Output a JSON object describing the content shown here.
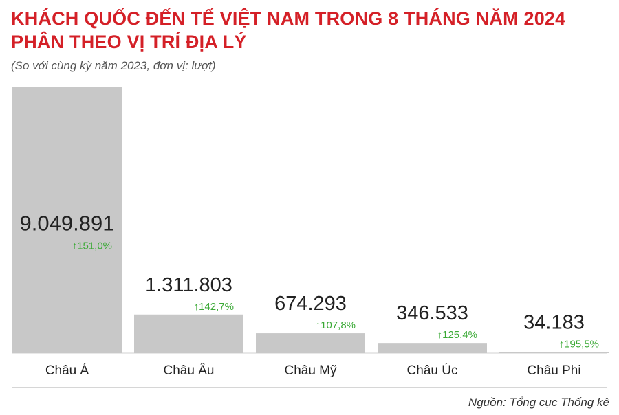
{
  "header": {
    "title_line1": "KHÁCH QUỐC ĐẾN TẾ VIỆT NAM TRONG 8 THÁNG NĂM 2024",
    "title_line2": "PHÂN THEO VỊ TRÍ ĐỊA LÝ",
    "subtitle": "(So với cùng kỳ năm 2023, đơn vị: lượt)"
  },
  "footer": {
    "source": "Nguồn: Tổng cục Thống kê"
  },
  "colors": {
    "title": "#d42027",
    "bar": "#c8c8c8",
    "growth": "#3aa935",
    "text": "#222222"
  },
  "chart_data": {
    "type": "bar",
    "title": "KHÁCH QUỐC ĐẾN TẾ VIỆT NAM TRONG 8 THÁNG NĂM 2024 PHÂN THEO VỊ TRÍ ĐỊA LÝ",
    "categories": [
      "Châu Á",
      "Châu Âu",
      "Châu Mỹ",
      "Châu Úc",
      "Châu Phi"
    ],
    "values": [
      9049891,
      1311803,
      674293,
      346533,
      34183
    ],
    "value_labels": [
      "9.049.891",
      "1.311.803",
      "674.293",
      "346.533",
      "34.183"
    ],
    "growth_labels": [
      "151,0%",
      "142,7%",
      "107,8%",
      "125,4%",
      "195,5%"
    ],
    "growth_direction": [
      "up",
      "up",
      "up",
      "up",
      "up"
    ],
    "xlabel": "",
    "ylabel": "",
    "ylim": [
      0,
      9049891
    ],
    "grid": false,
    "legend": "none"
  }
}
